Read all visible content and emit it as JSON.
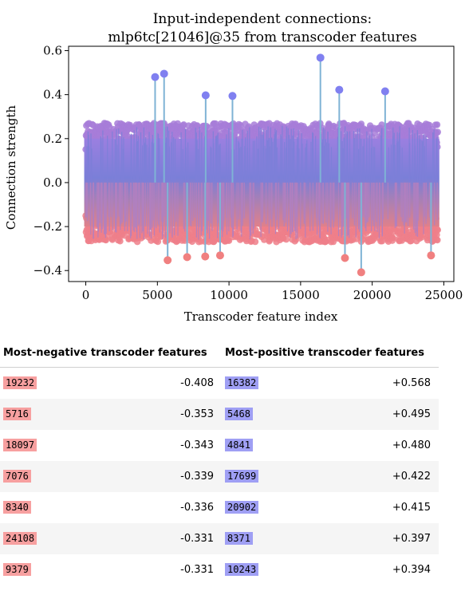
{
  "chart_data": {
    "type": "stem",
    "title_lines": [
      "Input-independent connections:",
      "mlp6tc[21046]@35 from transcoder features"
    ],
    "xlabel": "Transcoder feature index",
    "ylabel": "Connection strength",
    "xlim": [
      -1200,
      25700
    ],
    "ylim": [
      -0.45,
      0.62
    ],
    "xticks": [
      0,
      5000,
      10000,
      15000,
      20000,
      25000
    ],
    "xtick_labels": [
      "0",
      "5000",
      "10000",
      "15000",
      "20000",
      "25000"
    ],
    "yticks": [
      -0.4,
      -0.2,
      0.0,
      0.2,
      0.4,
      0.6
    ],
    "ytick_labels": [
      "−0.4",
      "−0.2",
      "0.0",
      "0.2",
      "0.4",
      "0.6"
    ],
    "n_features": 24576,
    "bulk_range": [
      -0.27,
      0.27
    ],
    "highlight_points": [
      {
        "x": 19232,
        "y": -0.408
      },
      {
        "x": 5716,
        "y": -0.353
      },
      {
        "x": 18097,
        "y": -0.343
      },
      {
        "x": 7076,
        "y": -0.339
      },
      {
        "x": 8340,
        "y": -0.336
      },
      {
        "x": 24108,
        "y": -0.331
      },
      {
        "x": 9379,
        "y": -0.331
      },
      {
        "x": 16382,
        "y": 0.568
      },
      {
        "x": 5468,
        "y": 0.495
      },
      {
        "x": 4841,
        "y": 0.48
      },
      {
        "x": 17699,
        "y": 0.422
      },
      {
        "x": 20902,
        "y": 0.415
      },
      {
        "x": 8371,
        "y": 0.397
      },
      {
        "x": 10243,
        "y": 0.394
      }
    ],
    "colors": {
      "positive": "#8080f0",
      "negative": "#f08080",
      "stem": "#7fb3d5"
    }
  },
  "tables": {
    "negative_header": "Most-negative transcoder features",
    "positive_header": "Most-positive transcoder features",
    "rows": [
      {
        "neg_id": "19232",
        "neg_val": "-0.408",
        "pos_id": "16382",
        "pos_val": "+0.568"
      },
      {
        "neg_id": "5716",
        "neg_val": "-0.353",
        "pos_id": "5468",
        "pos_val": "+0.495"
      },
      {
        "neg_id": "18097",
        "neg_val": "-0.343",
        "pos_id": "4841",
        "pos_val": "+0.480"
      },
      {
        "neg_id": "7076",
        "neg_val": "-0.339",
        "pos_id": "17699",
        "pos_val": "+0.422"
      },
      {
        "neg_id": "8340",
        "neg_val": "-0.336",
        "pos_id": "20902",
        "pos_val": "+0.415"
      },
      {
        "neg_id": "24108",
        "neg_val": "-0.331",
        "pos_id": "8371",
        "pos_val": "+0.397"
      },
      {
        "neg_id": "9379",
        "neg_val": "-0.331",
        "pos_id": "10243",
        "pos_val": "+0.394"
      }
    ]
  }
}
